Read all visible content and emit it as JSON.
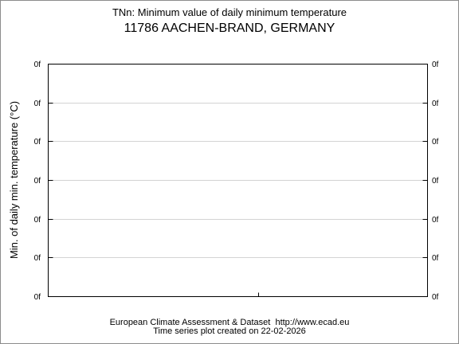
{
  "chart_data": {
    "type": "line",
    "title": "TNn: Minimum value of daily minimum temperature",
    "subtitle": "11786 AACHEN-BRAND, GERMANY",
    "xlabel": "",
    "ylabel": "Min. of daily min. temperature (°C)",
    "y_tick_labels": [
      "0f",
      "0f",
      "0f",
      "0f",
      "0f",
      "0f",
      "0f"
    ],
    "x_tick_labels": [],
    "series": [],
    "grid": true,
    "legend": "none"
  },
  "footer": {
    "line1": "European Climate Assessment & Dataset  http://www.ecad.eu",
    "line2": "Time series plot created on 22-02-2026"
  },
  "colors": {
    "background": "#ffffff",
    "axis": "#000000",
    "grid": "#d3d3d3",
    "frame": "#8c8c8c"
  }
}
